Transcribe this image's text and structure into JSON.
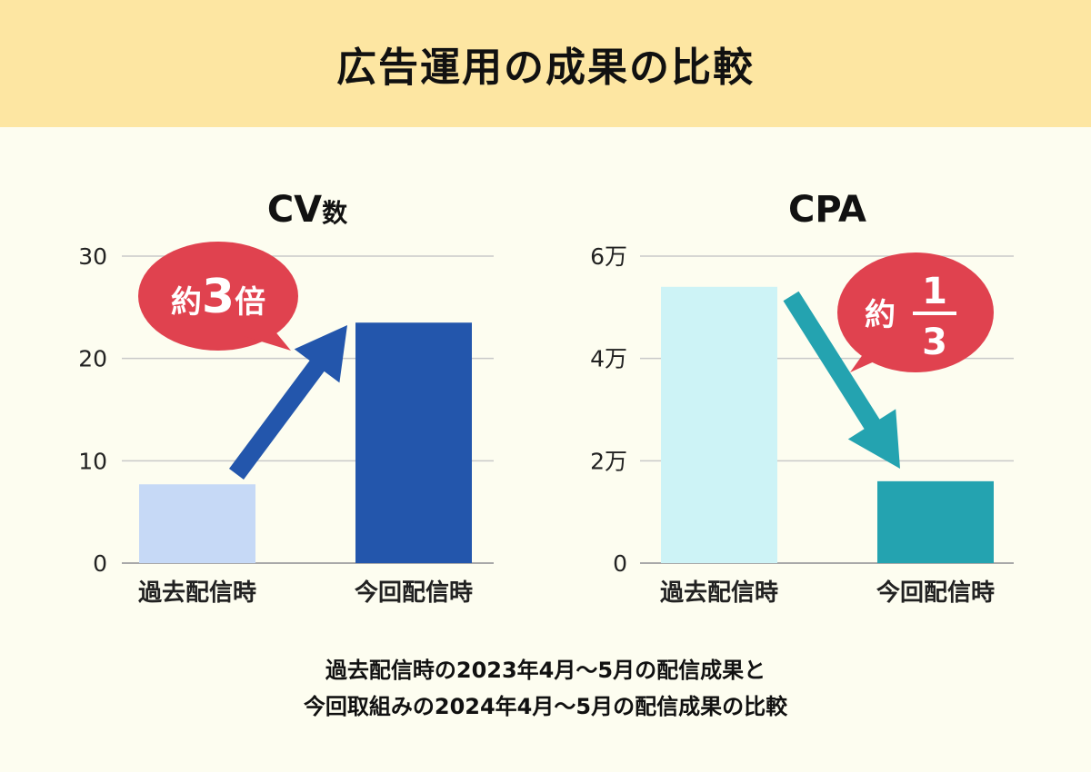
{
  "header": {
    "title": "広告運用の成果の比較"
  },
  "chart_data": [
    {
      "type": "bar",
      "title": "CV数",
      "categories": [
        "過去配信時",
        "今回配信時"
      ],
      "values": [
        7.7,
        23.5
      ],
      "ylim": [
        0,
        30
      ],
      "yticks": [
        0,
        10,
        20,
        30
      ],
      "ytick_labels": [
        "0",
        "10",
        "20",
        "30"
      ],
      "grid": true,
      "colors": [
        "#c6d9f6",
        "#2356ac"
      ],
      "arrow_color": "#2356ac",
      "annotation": {
        "prefix": "約",
        "value": "3",
        "suffix": "倍",
        "bubble_color": "#e0424f"
      }
    },
    {
      "type": "bar",
      "title": "CPA",
      "categories": [
        "過去配信時",
        "今回配信時"
      ],
      "values": [
        54000,
        16000
      ],
      "ylim": [
        0,
        60000
      ],
      "yticks": [
        0,
        20000,
        40000,
        60000
      ],
      "ytick_labels": [
        "0",
        "2万",
        "4万",
        "6万"
      ],
      "grid": true,
      "colors": [
        "#cdf3f6",
        "#24a3b0"
      ],
      "arrow_color": "#24a3b0",
      "annotation": {
        "prefix": "約",
        "numerator": "1",
        "denominator": "3",
        "bubble_color": "#e0424f"
      }
    }
  ],
  "footnote": {
    "line1": "過去配信時の2023年4月～5月の配信成果と",
    "line2": "今回取組みの2024年4月～5月の配信成果の比較"
  }
}
